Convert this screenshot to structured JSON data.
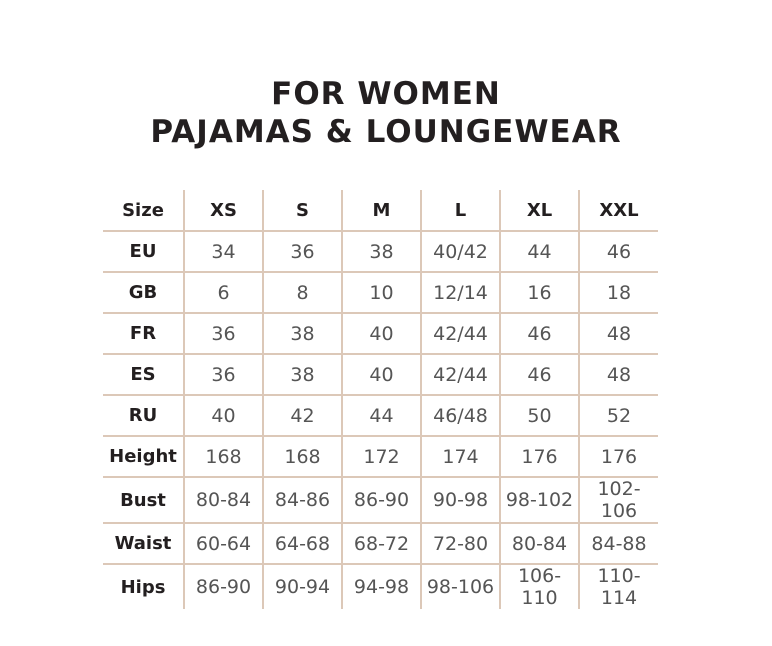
{
  "title_line1": "FOR WOMEN",
  "title_line2": "PAJAMAS & LOUNGEWEAR",
  "colors": {
    "grid": "#dcc8b8",
    "text": "#231f20"
  },
  "table": {
    "header": [
      "Size",
      "XS",
      "S",
      "M",
      "L",
      "XL",
      "XXL"
    ],
    "rows": [
      [
        "EU",
        "34",
        "36",
        "38",
        "40/42",
        "44",
        "46"
      ],
      [
        "GB",
        "6",
        "8",
        "10",
        "12/14",
        "16",
        "18"
      ],
      [
        "FR",
        "36",
        "38",
        "40",
        "42/44",
        "46",
        "48"
      ],
      [
        "ES",
        "36",
        "38",
        "40",
        "42/44",
        "46",
        "48"
      ],
      [
        "RU",
        "40",
        "42",
        "44",
        "46/48",
        "50",
        "52"
      ],
      [
        "Height",
        "168",
        "168",
        "172",
        "174",
        "176",
        "176"
      ],
      [
        "Bust",
        "80-84",
        "84-86",
        "86-90",
        "90-98",
        "98-102",
        "102-106"
      ],
      [
        "Waist",
        "60-64",
        "64-68",
        "68-72",
        "72-80",
        "80-84",
        "84-88"
      ],
      [
        "Hips",
        "86-90",
        "90-94",
        "94-98",
        "98-106",
        "106-110",
        "110-114"
      ]
    ]
  }
}
